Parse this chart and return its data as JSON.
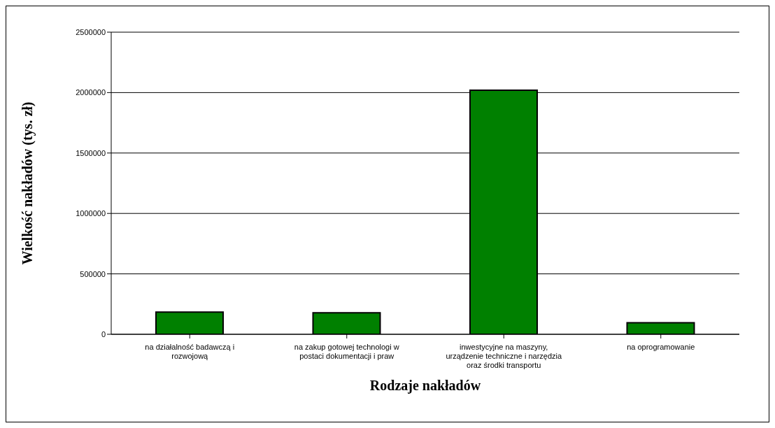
{
  "chart_data": {
    "type": "bar",
    "xlabel": "Rodzaje nakładów",
    "ylabel": "Wielkość nakładów (tys. zł)",
    "categories": [
      "na działalność badawczą i rozwojową",
      "na zakup gotowej technologi w postaci dokumentacji i praw",
      "inwestycyjne na maszyny, urządzenie techniczne i narzędzia oraz środki transportu",
      "na oprogramowanie"
    ],
    "values": [
      184000,
      178000,
      2020000,
      95000
    ],
    "color": "#008000",
    "ylim": [
      0,
      2500000
    ],
    "yticks": [
      0,
      500000,
      1000000,
      1500000,
      2000000,
      2500000
    ],
    "grid": "y"
  }
}
